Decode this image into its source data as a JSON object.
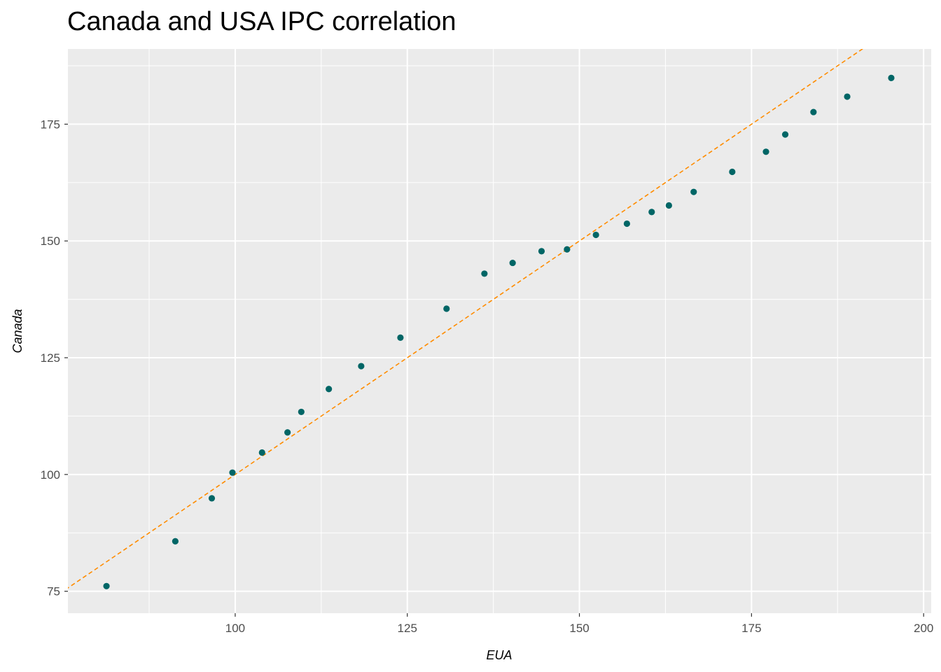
{
  "chart_data": {
    "type": "scatter",
    "title": "Canada and USA IPC correlation",
    "xlabel": "EUA",
    "ylabel": "Canada",
    "xlim": [
      75.7,
      201.1
    ],
    "ylim": [
      70.3,
      191.1
    ],
    "x_ticks": [
      100,
      125,
      150,
      175,
      200
    ],
    "y_ticks": [
      75,
      100,
      125,
      150,
      175
    ],
    "grid": true,
    "point_color": "#006666",
    "panel_background": "#ebebeb",
    "reference_line": {
      "type": "identity",
      "style": "dashed",
      "color": "#ff8c00"
    },
    "points": [
      {
        "x": 81.3,
        "y": 76.1
      },
      {
        "x": 91.3,
        "y": 85.7
      },
      {
        "x": 96.6,
        "y": 94.9
      },
      {
        "x": 99.6,
        "y": 100.4
      },
      {
        "x": 103.9,
        "y": 104.7
      },
      {
        "x": 107.6,
        "y": 109.0
      },
      {
        "x": 109.6,
        "y": 113.4
      },
      {
        "x": 113.6,
        "y": 118.3
      },
      {
        "x": 118.3,
        "y": 123.2
      },
      {
        "x": 124.0,
        "y": 129.3
      },
      {
        "x": 130.7,
        "y": 135.5
      },
      {
        "x": 136.2,
        "y": 143.0
      },
      {
        "x": 140.3,
        "y": 145.3
      },
      {
        "x": 144.5,
        "y": 147.8
      },
      {
        "x": 148.2,
        "y": 148.2
      },
      {
        "x": 152.4,
        "y": 151.3
      },
      {
        "x": 156.9,
        "y": 153.7
      },
      {
        "x": 160.5,
        "y": 156.2
      },
      {
        "x": 163.0,
        "y": 157.6
      },
      {
        "x": 166.6,
        "y": 160.5
      },
      {
        "x": 172.2,
        "y": 164.8
      },
      {
        "x": 177.1,
        "y": 169.1
      },
      {
        "x": 179.9,
        "y": 172.8
      },
      {
        "x": 184.0,
        "y": 177.6
      },
      {
        "x": 188.9,
        "y": 180.9
      },
      {
        "x": 195.3,
        "y": 184.9
      }
    ]
  }
}
